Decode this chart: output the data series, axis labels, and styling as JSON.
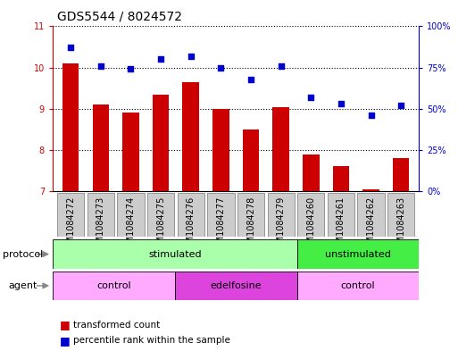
{
  "title": "GDS5544 / 8024572",
  "samples": [
    "GSM1084272",
    "GSM1084273",
    "GSM1084274",
    "GSM1084275",
    "GSM1084276",
    "GSM1084277",
    "GSM1084278",
    "GSM1084279",
    "GSM1084260",
    "GSM1084261",
    "GSM1084262",
    "GSM1084263"
  ],
  "transformed_count": [
    10.1,
    9.1,
    8.9,
    9.35,
    9.65,
    9.0,
    8.5,
    9.05,
    7.9,
    7.6,
    7.05,
    7.8
  ],
  "percentile_rank": [
    87,
    76,
    74,
    80,
    82,
    75,
    68,
    76,
    57,
    53,
    46,
    52
  ],
  "bar_color": "#cc0000",
  "dot_color": "#0000cc",
  "ylim_left": [
    7,
    11
  ],
  "ylim_right": [
    0,
    100
  ],
  "yticks_left": [
    7,
    8,
    9,
    10,
    11
  ],
  "yticks_right": [
    0,
    25,
    50,
    75,
    100
  ],
  "ytick_labels_right": [
    "0%",
    "25%",
    "50%",
    "75%",
    "100%"
  ],
  "protocol_labels": [
    {
      "text": "stimulated",
      "start": 0,
      "end": 8,
      "color": "#aaffaa"
    },
    {
      "text": "unstimulated",
      "start": 8,
      "end": 12,
      "color": "#44ee44"
    }
  ],
  "agent_labels": [
    {
      "text": "control",
      "start": 0,
      "end": 4,
      "color": "#ffaaff"
    },
    {
      "text": "edelfosine",
      "start": 4,
      "end": 8,
      "color": "#dd44dd"
    },
    {
      "text": "control",
      "start": 8,
      "end": 12,
      "color": "#ffaaff"
    }
  ],
  "legend_items": [
    {
      "label": "transformed count",
      "color": "#cc0000"
    },
    {
      "label": "percentile rank within the sample",
      "color": "#0000cc"
    }
  ],
  "protocol_arrow_label": "protocol",
  "agent_arrow_label": "agent",
  "sample_bg_color": "#cccccc",
  "sample_border_color": "#888888",
  "title_fontsize": 10,
  "tick_fontsize": 7,
  "label_fontsize": 8,
  "legend_fontsize": 7.5
}
